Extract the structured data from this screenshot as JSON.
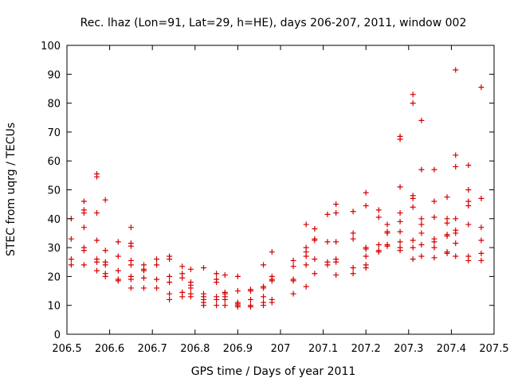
{
  "chart_data": {
    "type": "scatter",
    "title": "Rec. lhaz (Lon=91, Lat=29, h=HE), days 206-207, 2011, window 002",
    "xlabel": "GPS time / Days of year 2011",
    "ylabel": "STEC from uqrg / TECUs",
    "xlim": [
      206.5,
      207.5
    ],
    "ylim": [
      0,
      100
    ],
    "xticks": [
      "206.5",
      "206.6",
      "206.7",
      "206.8",
      "206.9",
      "207",
      "207.1",
      "207.2",
      "207.3",
      "207.4",
      "207.5"
    ],
    "yticks": [
      "0",
      "10",
      "20",
      "30",
      "40",
      "50",
      "60",
      "70",
      "80",
      "90",
      "100"
    ],
    "grid": false,
    "legend": "none",
    "marker": "plus",
    "color": "#d40000",
    "points": [
      [
        206.51,
        40
      ],
      [
        206.51,
        33
      ],
      [
        206.51,
        26
      ],
      [
        206.51,
        24
      ],
      [
        206.54,
        46
      ],
      [
        206.54,
        43
      ],
      [
        206.54,
        42
      ],
      [
        206.54,
        37
      ],
      [
        206.54,
        30
      ],
      [
        206.54,
        29
      ],
      [
        206.54,
        24
      ],
      [
        206.57,
        55.5
      ],
      [
        206.57,
        54.5
      ],
      [
        206.57,
        42
      ],
      [
        206.57,
        32.5
      ],
      [
        206.57,
        26
      ],
      [
        206.57,
        25
      ],
      [
        206.57,
        22
      ],
      [
        206.59,
        46.5
      ],
      [
        206.59,
        29
      ],
      [
        206.59,
        25
      ],
      [
        206.59,
        24
      ],
      [
        206.59,
        21
      ],
      [
        206.59,
        20
      ],
      [
        206.62,
        32
      ],
      [
        206.62,
        27
      ],
      [
        206.62,
        22
      ],
      [
        206.62,
        19
      ],
      [
        206.62,
        18.5
      ],
      [
        206.65,
        37
      ],
      [
        206.65,
        31.5
      ],
      [
        206.65,
        30.5
      ],
      [
        206.65,
        25.5
      ],
      [
        206.65,
        24
      ],
      [
        206.65,
        20
      ],
      [
        206.65,
        19
      ],
      [
        206.65,
        16
      ],
      [
        206.68,
        24
      ],
      [
        206.68,
        22.5
      ],
      [
        206.68,
        22
      ],
      [
        206.68,
        19.5
      ],
      [
        206.68,
        16
      ],
      [
        206.71,
        26
      ],
      [
        206.71,
        24
      ],
      [
        206.71,
        19
      ],
      [
        206.71,
        16
      ],
      [
        206.74,
        27
      ],
      [
        206.74,
        26
      ],
      [
        206.74,
        20
      ],
      [
        206.74,
        18
      ],
      [
        206.74,
        14
      ],
      [
        206.74,
        12
      ],
      [
        206.77,
        23.5
      ],
      [
        206.77,
        21
      ],
      [
        206.77,
        19.5
      ],
      [
        206.77,
        14.5
      ],
      [
        206.77,
        13
      ],
      [
        206.79,
        22.5
      ],
      [
        206.79,
        18
      ],
      [
        206.79,
        17
      ],
      [
        206.79,
        16
      ],
      [
        206.79,
        14
      ],
      [
        206.79,
        13
      ],
      [
        206.82,
        23
      ],
      [
        206.82,
        14
      ],
      [
        206.82,
        13
      ],
      [
        206.82,
        12
      ],
      [
        206.82,
        11
      ],
      [
        206.82,
        10
      ],
      [
        206.85,
        21
      ],
      [
        206.85,
        19
      ],
      [
        206.85,
        18
      ],
      [
        206.85,
        13
      ],
      [
        206.85,
        12
      ],
      [
        206.85,
        10
      ],
      [
        206.87,
        20.5
      ],
      [
        206.87,
        14.5
      ],
      [
        206.87,
        14
      ],
      [
        206.87,
        13
      ],
      [
        206.87,
        12
      ],
      [
        206.87,
        10
      ],
      [
        206.9,
        20
      ],
      [
        206.9,
        15
      ],
      [
        206.9,
        11
      ],
      [
        206.9,
        10.5
      ],
      [
        206.9,
        10
      ],
      [
        206.9,
        9.5
      ],
      [
        206.93,
        15.5
      ],
      [
        206.93,
        15
      ],
      [
        206.93,
        12
      ],
      [
        206.93,
        10
      ],
      [
        206.93,
        9.5
      ],
      [
        206.96,
        24
      ],
      [
        206.96,
        16.5
      ],
      [
        206.96,
        16
      ],
      [
        206.96,
        13
      ],
      [
        206.96,
        11
      ],
      [
        206.96,
        10
      ],
      [
        206.98,
        28.5
      ],
      [
        206.98,
        20
      ],
      [
        206.98,
        19
      ],
      [
        206.98,
        18.5
      ],
      [
        206.98,
        12
      ],
      [
        206.98,
        11
      ],
      [
        207.03,
        25.5
      ],
      [
        207.03,
        23.5
      ],
      [
        207.03,
        19
      ],
      [
        207.03,
        18.5
      ],
      [
        207.03,
        14
      ],
      [
        207.06,
        38
      ],
      [
        207.06,
        30
      ],
      [
        207.06,
        28.5
      ],
      [
        207.06,
        27
      ],
      [
        207.06,
        24
      ],
      [
        207.06,
        16.5
      ],
      [
        207.08,
        36.5
      ],
      [
        207.08,
        33
      ],
      [
        207.08,
        32.5
      ],
      [
        207.08,
        26
      ],
      [
        207.08,
        21
      ],
      [
        207.11,
        41.5
      ],
      [
        207.11,
        32
      ],
      [
        207.11,
        25
      ],
      [
        207.11,
        24
      ],
      [
        207.13,
        45
      ],
      [
        207.13,
        42
      ],
      [
        207.13,
        32
      ],
      [
        207.13,
        26
      ],
      [
        207.13,
        25
      ],
      [
        207.13,
        20.5
      ],
      [
        207.17,
        42.5
      ],
      [
        207.17,
        35
      ],
      [
        207.17,
        33
      ],
      [
        207.17,
        23
      ],
      [
        207.17,
        21
      ],
      [
        207.2,
        49
      ],
      [
        207.2,
        44.5
      ],
      [
        207.2,
        30
      ],
      [
        207.2,
        29.5
      ],
      [
        207.2,
        27
      ],
      [
        207.2,
        24
      ],
      [
        207.2,
        23
      ],
      [
        207.23,
        43
      ],
      [
        207.23,
        40.5
      ],
      [
        207.23,
        31
      ],
      [
        207.23,
        29
      ],
      [
        207.23,
        28.5
      ],
      [
        207.25,
        38
      ],
      [
        207.25,
        35.5
      ],
      [
        207.25,
        35
      ],
      [
        207.25,
        31
      ],
      [
        207.25,
        30.5
      ],
      [
        207.28,
        68.5
      ],
      [
        207.28,
        67.5
      ],
      [
        207.28,
        51
      ],
      [
        207.28,
        42
      ],
      [
        207.28,
        39
      ],
      [
        207.28,
        35.5
      ],
      [
        207.28,
        32
      ],
      [
        207.28,
        30
      ],
      [
        207.28,
        29
      ],
      [
        207.31,
        83
      ],
      [
        207.31,
        80
      ],
      [
        207.31,
        48
      ],
      [
        207.31,
        47
      ],
      [
        207.31,
        44
      ],
      [
        207.31,
        32.5
      ],
      [
        207.31,
        30
      ],
      [
        207.31,
        26
      ],
      [
        207.33,
        74
      ],
      [
        207.33,
        57
      ],
      [
        207.33,
        40
      ],
      [
        207.33,
        38
      ],
      [
        207.33,
        35
      ],
      [
        207.33,
        31
      ],
      [
        207.33,
        27
      ],
      [
        207.36,
        57
      ],
      [
        207.36,
        46
      ],
      [
        207.36,
        40.5
      ],
      [
        207.36,
        33
      ],
      [
        207.36,
        32
      ],
      [
        207.36,
        30
      ],
      [
        207.36,
        26.5
      ],
      [
        207.39,
        47.5
      ],
      [
        207.39,
        40
      ],
      [
        207.39,
        38.5
      ],
      [
        207.39,
        34.5
      ],
      [
        207.39,
        34
      ],
      [
        207.39,
        28.5
      ],
      [
        207.39,
        28
      ],
      [
        207.41,
        91.5
      ],
      [
        207.41,
        62
      ],
      [
        207.41,
        58
      ],
      [
        207.41,
        40
      ],
      [
        207.41,
        36
      ],
      [
        207.41,
        35
      ],
      [
        207.41,
        31.5
      ],
      [
        207.41,
        27
      ],
      [
        207.44,
        58.5
      ],
      [
        207.44,
        50
      ],
      [
        207.44,
        46
      ],
      [
        207.44,
        44.5
      ],
      [
        207.44,
        38
      ],
      [
        207.44,
        27
      ],
      [
        207.44,
        25.5
      ],
      [
        207.47,
        85.5
      ],
      [
        207.47,
        47
      ],
      [
        207.47,
        37
      ],
      [
        207.47,
        32.5
      ],
      [
        207.47,
        28
      ],
      [
        207.47,
        25.5
      ]
    ]
  }
}
